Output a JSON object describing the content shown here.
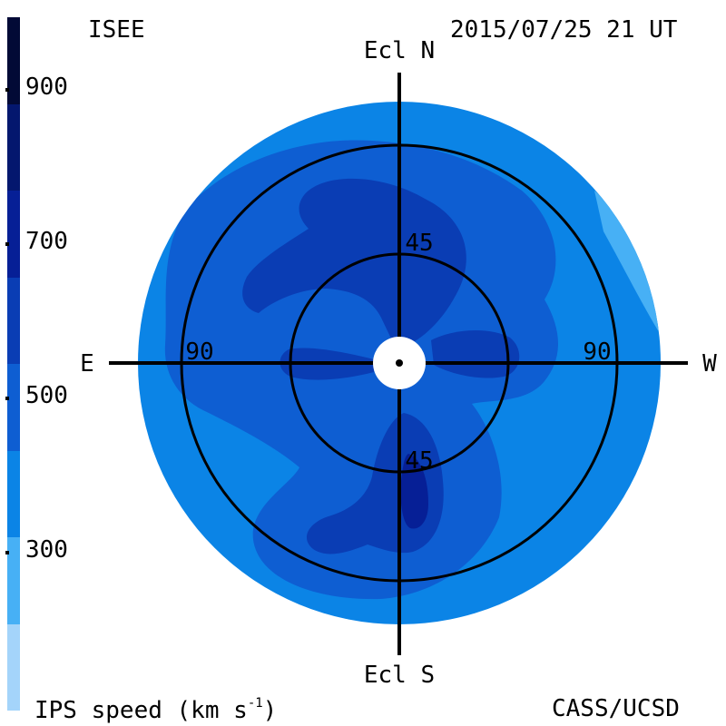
{
  "header": {
    "org_label": "ISEE",
    "timestamp": "2015/07/25 21 UT"
  },
  "footer": {
    "quantity_label": "IPS speed (km s",
    "quantity_exponent": "-1",
    "quantity_close": ")",
    "credit": "CASS/UCSD"
  },
  "directions": {
    "north": "Ecl N",
    "south": "Ecl S",
    "east": "E",
    "west": "W"
  },
  "ring_labels": {
    "inner_north": "45",
    "inner_south": "45",
    "outer_east": "90",
    "outer_west": "90"
  },
  "colorbar": {
    "ticks": [
      "900",
      "700",
      "500",
      "300"
    ],
    "bands": [
      {
        "min": 200,
        "max": 300,
        "color": "#a4d4fa"
      },
      {
        "min": 300,
        "max": 400,
        "color": "#47b0f5"
      },
      {
        "min": 400,
        "max": 500,
        "color": "#0b84e6"
      },
      {
        "min": 500,
        "max": 600,
        "color": "#0e5ed2"
      },
      {
        "min": 600,
        "max": 700,
        "color": "#0a3db4"
      },
      {
        "min": 700,
        "max": 800,
        "color": "#061f96"
      },
      {
        "min": 800,
        "max": 900,
        "color": "#04176e"
      },
      {
        "min": 900,
        "max": 1000,
        "color": "#020a36"
      }
    ]
  },
  "map_colors": {
    "disk": "#0b84e6",
    "level_500_600": "#0e5ed2",
    "level_600_700": "#0a3db4",
    "level_300_400": "#47b0f5",
    "occulter": "#ffffff",
    "graticule": "#000000"
  }
}
